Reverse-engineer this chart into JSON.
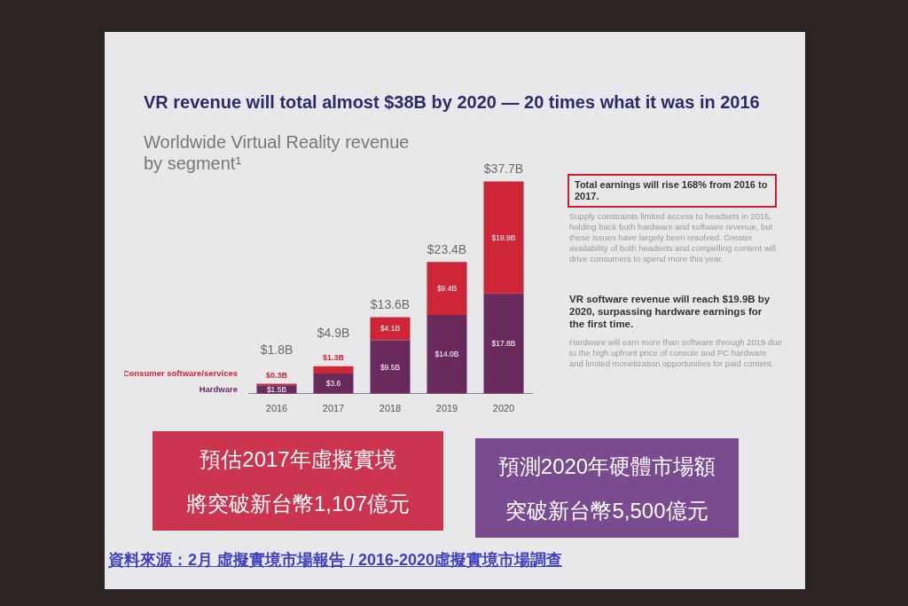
{
  "chart_data": {
    "type": "bar",
    "title": "VR revenue will total almost $38B by 2020 — 20 times what it was in 2016",
    "subtitle": "Worldwide Virtual Reality revenue by segment¹",
    "categories": [
      "2016",
      "2017",
      "2018",
      "2019",
      "2020"
    ],
    "stacked": true,
    "legend": "left",
    "series": [
      {
        "name": "Hardware",
        "color": "#6a2b5c",
        "values": [
          1.5,
          3.6,
          9.5,
          14.0,
          17.8
        ],
        "value_labels": [
          "$1.5B",
          "$3.6",
          "$9.5B",
          "$14.0B",
          "$17.8B"
        ]
      },
      {
        "name": "Consumer software/services",
        "color": "#cf2637",
        "values": [
          0.3,
          1.3,
          4.1,
          9.4,
          19.9
        ],
        "value_labels": [
          "$0.3B",
          "$1.3B",
          "$4.1B",
          "$9.4B",
          "$19.9B"
        ]
      }
    ],
    "totals": [
      "$1.8B",
      "$4.9B",
      "$13.6B",
      "$23.4B",
      "$37.7B"
    ],
    "annotations": [
      "Total earnings will rise 168% from 2016 to 2017.",
      "Supply constraints limited access to headsets in 2016, holding back both hardware and software revenue, but these issues have largely been resolved. Greater availability of both headsets and compelling content will drive consumers to spend more this year.",
      "VR software revenue will reach $19.9B by 2020, surpassing hardware earnings for the first time.",
      "Hardware will earn more than software through 2019 due to the high upfront price of console and PC hardware and limited monetization opportunities for paid content.",
      "預估2017年虛擬實境",
      "將突破新台幣1,107億元",
      "預測2020年硬體市場額",
      "突破新台幣5,500億元",
      "資料來源：2月 虛擬實境市場報告 / 2016-2020虛擬實境市場調查"
    ]
  }
}
